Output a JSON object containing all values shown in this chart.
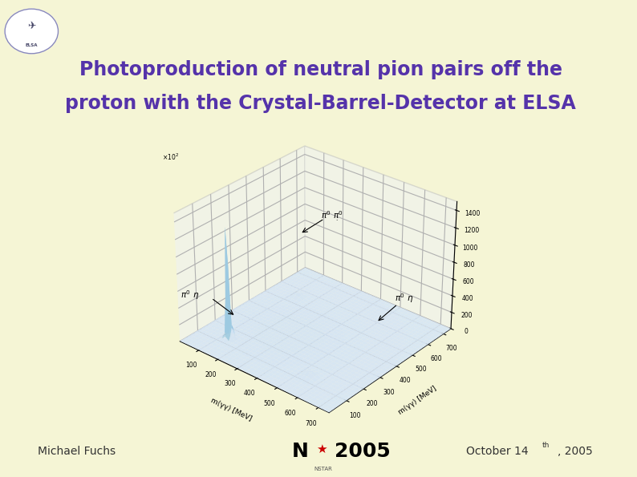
{
  "title_line1": "Photoproduction of neutral pion pairs off the",
  "title_line2": "proton with the Crystal-Barrel-Detector at ELSA",
  "title_color": "#5533aa",
  "title_fontsize": 17,
  "bg_color": "#f5f5d5",
  "header_bg": "#d0d0e8",
  "header_stripe_dark": "#6666aa",
  "header_stripe_light": "#9090c0",
  "left_bar_color": "#d4d490",
  "author_text": "Michael Fuchs",
  "footer_text_color": "#333333",
  "footer_fontsize": 10,
  "annotation_color": "#222222",
  "pane_color": "#e8eff8",
  "surface_cmap": "Blues"
}
